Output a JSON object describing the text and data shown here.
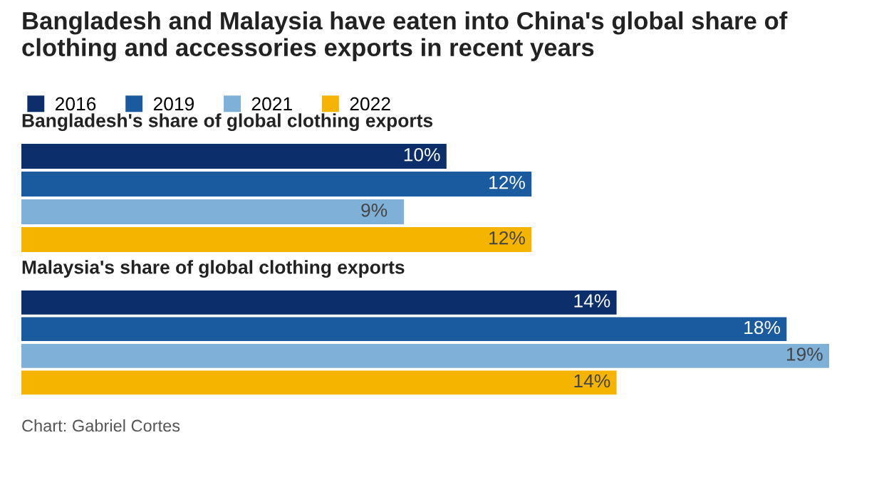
{
  "chart_data": [
    {
      "type": "bar",
      "orientation": "horizontal",
      "title": "Bangladesh and Malaysia have eaten into China's global share of clothing and accessories exports in recent years",
      "subtitle": "Bangladesh's share of global clothing exports",
      "categories": [
        null
      ],
      "legend": "top left",
      "series": [
        {
          "name": "2016",
          "color": "#0c2f6b",
          "values": [
            10
          ],
          "value_labels": [
            "10%"
          ]
        },
        {
          "name": "2019",
          "color": "#1a5a9e",
          "values": [
            12
          ],
          "value_labels": [
            "12%"
          ]
        },
        {
          "name": "2021",
          "color": "#7fb0d8",
          "values": [
            9
          ],
          "value_labels": [
            "9%"
          ]
        },
        {
          "name": "2022",
          "color": "#f5b400",
          "values": [
            12
          ],
          "value_labels": [
            "12%"
          ]
        }
      ]
    },
    {
      "type": "bar",
      "orientation": "horizontal",
      "subtitle": "Malaysia's share of global clothing exports",
      "categories": [
        null
      ],
      "annotations": [
        "Chart: Gabriel Cortes"
      ],
      "series": [
        {
          "color": "#0c2f6b",
          "values": [
            14
          ],
          "value_labels": [
            "14%"
          ]
        },
        {
          "color": "#1a5a9e",
          "values": [
            18
          ],
          "value_labels": [
            "18%"
          ]
        },
        {
          "color": "#7fb0d8",
          "values": [
            19
          ],
          "value_labels": [
            "19%"
          ]
        },
        {
          "color": "#f5b400",
          "values": [
            14
          ],
          "value_labels": [
            "14%"
          ]
        }
      ]
    }
  ]
}
